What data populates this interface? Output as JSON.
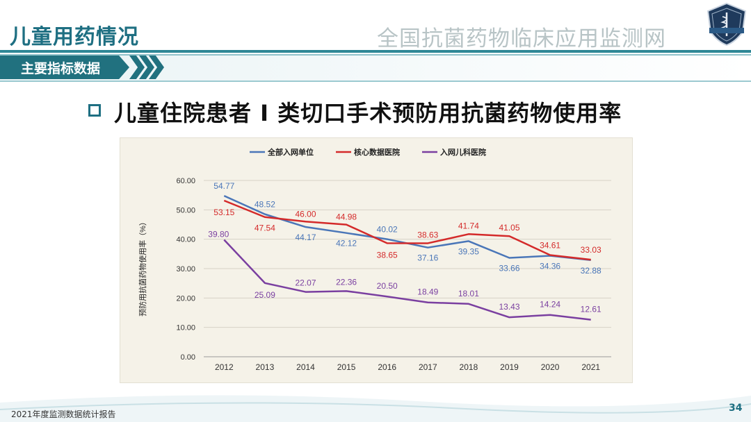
{
  "header": {
    "title": "儿童用药情况",
    "org_name": "全国抗菌药物临床应用监测网"
  },
  "section": {
    "label": "主要指标数据"
  },
  "slide": {
    "heading": "儿童住院患者 Ⅰ 类切口手术预防用抗菌药物使用率"
  },
  "footer": {
    "report_name": "2021年度监测数据统计报告",
    "page_number": "34"
  },
  "colors": {
    "accent": "#1e6f82",
    "chart_bg": "#f5f2e8"
  },
  "chart_data": {
    "type": "line",
    "categories": [
      "2012",
      "2013",
      "2014",
      "2015",
      "2016",
      "2017",
      "2018",
      "2019",
      "2020",
      "2021"
    ],
    "ylabel": "预防用抗菌药物使用率（%）",
    "xlabel": "",
    "ylim": [
      0,
      60
    ],
    "yticks": [
      "0.00",
      "10.00",
      "20.00",
      "30.00",
      "40.00",
      "50.00",
      "60.00"
    ],
    "legend_position": "top",
    "grid": "horizontal",
    "series": [
      {
        "name": "全部入网单位",
        "color": "#4a76b8",
        "values": [
          54.77,
          48.52,
          44.17,
          42.12,
          40.02,
          37.16,
          39.35,
          33.66,
          34.36,
          32.88
        ],
        "labels": [
          "54.77",
          "48.52",
          "44.17",
          "42.12",
          "40.02",
          "37.16",
          "39.35",
          "33.66",
          "34.36",
          "32.88"
        ]
      },
      {
        "name": "核心数据医院",
        "color": "#d42a2a",
        "values": [
          53.15,
          47.54,
          46.0,
          44.98,
          38.65,
          38.63,
          41.74,
          41.05,
          34.61,
          33.03
        ],
        "labels": [
          "53.15",
          "47.54",
          "46.00",
          "44.98",
          "38.65",
          "38.63",
          "41.74",
          "41.05",
          "34.61",
          "33.03"
        ]
      },
      {
        "name": "入网儿科医院",
        "color": "#7a3fa0",
        "values": [
          39.8,
          25.09,
          22.07,
          22.36,
          20.5,
          18.49,
          18.01,
          13.43,
          14.24,
          12.61
        ],
        "labels": [
          "39.80",
          "25.09",
          "22.07",
          "22.36",
          "20.50",
          "18.49",
          "18.01",
          "13.43",
          "14.24",
          "12.61"
        ]
      }
    ]
  }
}
